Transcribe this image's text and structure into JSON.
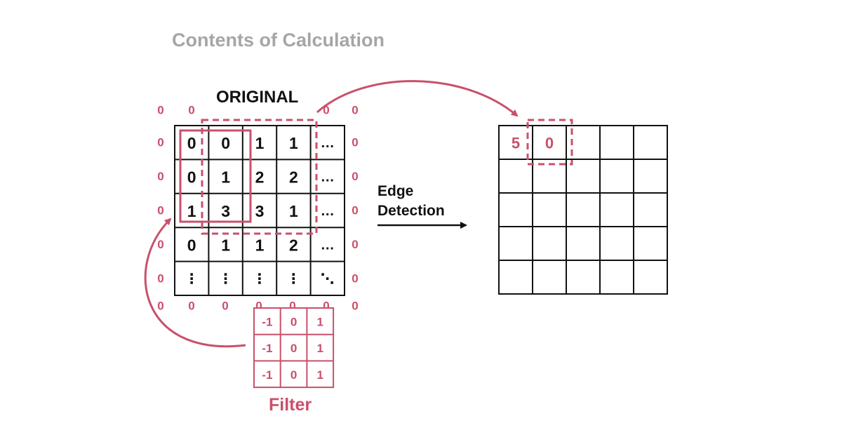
{
  "title": "Contents of Calculation",
  "original_label": "ORIGINAL",
  "operation_label_line1": "Edge",
  "operation_label_line2": "Detection",
  "filter_label": "Filter",
  "padding_value": "0",
  "original_grid": [
    [
      "0",
      "0",
      "1",
      "1",
      "…"
    ],
    [
      "0",
      "1",
      "2",
      "2",
      "…"
    ],
    [
      "1",
      "3",
      "3",
      "1",
      "…"
    ],
    [
      "0",
      "1",
      "1",
      "2",
      "…"
    ],
    [
      "⋮",
      "⋮",
      "⋮",
      "⋮",
      "⋱"
    ]
  ],
  "filter_grid": [
    [
      "-1",
      "0",
      "1"
    ],
    [
      "-1",
      "0",
      "1"
    ],
    [
      "-1",
      "0",
      "1"
    ]
  ],
  "output_grid": [
    [
      "5",
      "0",
      "",
      "",
      ""
    ],
    [
      "",
      "",
      "",
      "",
      ""
    ],
    [
      "",
      "",
      "",
      "",
      ""
    ],
    [
      "",
      "",
      "",
      "",
      ""
    ],
    [
      "",
      "",
      "",
      "",
      ""
    ]
  ],
  "colors": {
    "accent": "#c9506b",
    "grid_line": "#111111",
    "title": "#a6a6a6"
  }
}
